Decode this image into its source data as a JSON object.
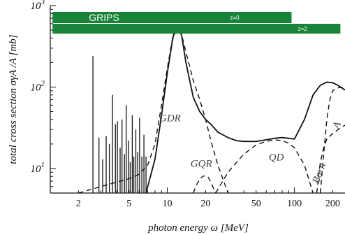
{
  "chart_data": {
    "type": "line",
    "title": "",
    "xlabel": "photon energy ω [MeV]",
    "ylabel": "total cross section σγA /A [mb]",
    "xscale": "log",
    "yscale": "log",
    "xlim": [
      1.2,
      250
    ],
    "ylim": [
      5,
      1000
    ],
    "x_ticks": [
      2,
      5,
      10,
      20,
      50,
      100,
      200
    ],
    "y_ticks": [
      {
        "value": 10,
        "base": "10",
        "exp": "1"
      },
      {
        "value": 100,
        "base": "10",
        "exp": "2"
      },
      {
        "value": 1000,
        "base": "10",
        "exp": "3"
      }
    ],
    "total": {
      "x": [
        6.8,
        7.2,
        8,
        9,
        10,
        11,
        11.5,
        12,
        12.5,
        13,
        14,
        16,
        18,
        20,
        22,
        25,
        30,
        35,
        40,
        50,
        60,
        70,
        80,
        90,
        100,
        120,
        140,
        160,
        180,
        200,
        220,
        250
      ],
      "y": [
        5,
        7,
        13,
        45,
        150,
        380,
        520,
        560,
        520,
        420,
        200,
        75,
        50,
        40,
        35,
        28,
        24,
        22,
        21.5,
        21.5,
        22.5,
        23.5,
        24,
        23.5,
        23,
        40,
        80,
        105,
        115,
        113,
        105,
        92
      ]
    },
    "spikes": {
      "x": [
        2.6,
        2.9,
        3.1,
        3.3,
        3.5,
        3.7,
        3.9,
        4.05,
        4.25,
        4.4,
        4.6,
        4.75,
        4.95,
        5.1,
        5.3,
        5.45,
        5.65,
        5.85,
        6.05,
        6.3,
        6.55,
        6.8
      ],
      "y": [
        240,
        24,
        13,
        25,
        20,
        80,
        35,
        38,
        18,
        40,
        15,
        60,
        22,
        12,
        45,
        14,
        30,
        16,
        42,
        14,
        26,
        14
      ]
    },
    "components": [
      {
        "name": "GDR",
        "x": [
          2.0,
          3,
          4,
          5,
          6,
          7,
          8,
          9,
          10,
          11,
          12,
          13,
          14,
          16,
          18,
          20,
          22,
          25,
          30
        ],
        "y": [
          5,
          6,
          6.8,
          7.5,
          8.5,
          11,
          20,
          60,
          170,
          400,
          520,
          430,
          270,
          120,
          70,
          40,
          22,
          11,
          5
        ]
      },
      {
        "name": "GQR",
        "x": [
          16,
          17,
          18,
          19,
          20,
          21,
          22,
          23,
          24
        ],
        "y": [
          5,
          6.3,
          7.4,
          8,
          8.2,
          7.8,
          6.8,
          5.8,
          5
        ]
      },
      {
        "name": "QD",
        "x": [
          24,
          30,
          40,
          50,
          60,
          70,
          80,
          90,
          100,
          120,
          140
        ],
        "y": [
          5,
          9,
          15,
          19.5,
          21.5,
          22.5,
          22,
          20.5,
          18,
          11,
          5
        ]
      },
      {
        "name": "A",
        "x": [
          160,
          170,
          180,
          190,
          200,
          210,
          220,
          250
        ],
        "y": [
          5,
          15,
          40,
          70,
          90,
          95,
          98,
          100
        ]
      },
      {
        "name": "Born",
        "x": [
          150,
          155,
          160,
          170,
          180,
          200,
          220,
          250
        ],
        "y": [
          5,
          8,
          12,
          18,
          23,
          27,
          30,
          34
        ]
      }
    ],
    "annotations": [
      "GDR",
      "GQR",
      "QD",
      "Born",
      "A"
    ]
  },
  "overlay": {
    "title": "GRIPS",
    "bands": [
      {
        "label": "z=0",
        "x_start": 1.25,
        "x_end": 95
      },
      {
        "label": "z=2",
        "x_start": 1.25,
        "x_end": 230
      }
    ],
    "color": "#17843a"
  }
}
